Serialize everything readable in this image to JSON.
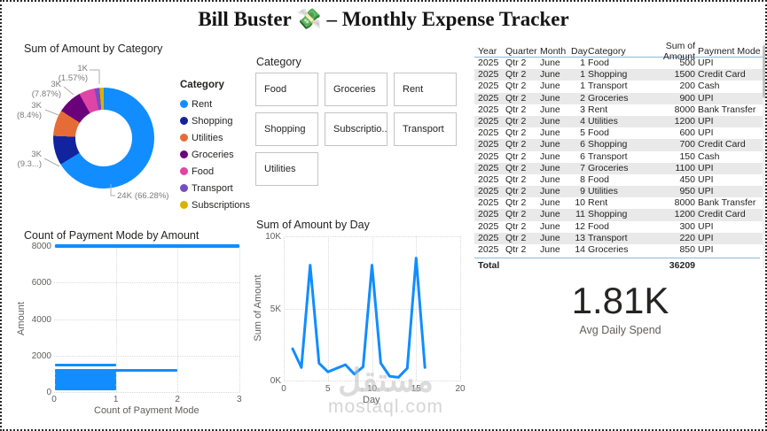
{
  "header": {
    "title": "Bill Buster 💸 – Monthly Expense Tracker"
  },
  "watermark": {
    "logo_text": "مستقل",
    "site": "mostaql.com"
  },
  "slicer": {
    "title": "Category",
    "options": [
      "Food",
      "Groceries",
      "Rent",
      "Shopping",
      "Subscriptio...",
      "Transport",
      "Utilities"
    ]
  },
  "table": {
    "columns": [
      "Year",
      "Quarter",
      "Month",
      "Day",
      "Category",
      "Sum of Amount",
      "Payment Mode"
    ],
    "rows": [
      [
        "2025",
        "Qtr 2",
        "June",
        "1",
        "Food",
        "500",
        "UPI"
      ],
      [
        "2025",
        "Qtr 2",
        "June",
        "1",
        "Shopping",
        "1500",
        "Credit Card"
      ],
      [
        "2025",
        "Qtr 2",
        "June",
        "1",
        "Transport",
        "200",
        "Cash"
      ],
      [
        "2025",
        "Qtr 2",
        "June",
        "2",
        "Groceries",
        "900",
        "UPI"
      ],
      [
        "2025",
        "Qtr 2",
        "June",
        "3",
        "Rent",
        "8000",
        "Bank Transfer"
      ],
      [
        "2025",
        "Qtr 2",
        "June",
        "4",
        "Utilities",
        "1200",
        "UPI"
      ],
      [
        "2025",
        "Qtr 2",
        "June",
        "5",
        "Food",
        "600",
        "UPI"
      ],
      [
        "2025",
        "Qtr 2",
        "June",
        "6",
        "Shopping",
        "700",
        "Credit Card"
      ],
      [
        "2025",
        "Qtr 2",
        "June",
        "6",
        "Transport",
        "150",
        "Cash"
      ],
      [
        "2025",
        "Qtr 2",
        "June",
        "7",
        "Groceries",
        "1100",
        "UPI"
      ],
      [
        "2025",
        "Qtr 2",
        "June",
        "8",
        "Food",
        "450",
        "UPI"
      ],
      [
        "2025",
        "Qtr 2",
        "June",
        "9",
        "Utilities",
        "950",
        "UPI"
      ],
      [
        "2025",
        "Qtr 2",
        "June",
        "10",
        "Rent",
        "8000",
        "Bank Transfer"
      ],
      [
        "2025",
        "Qtr 2",
        "June",
        "11",
        "Shopping",
        "1200",
        "Credit Card"
      ],
      [
        "2025",
        "Qtr 2",
        "June",
        "12",
        "Food",
        "300",
        "UPI"
      ],
      [
        "2025",
        "Qtr 2",
        "June",
        "13",
        "Transport",
        "220",
        "UPI"
      ],
      [
        "2025",
        "Qtr 2",
        "June",
        "14",
        "Groceries",
        "850",
        "UPI"
      ]
    ],
    "total_label": "Total",
    "total_value": "36209"
  },
  "card": {
    "value": "1.81K",
    "label": "Avg Daily Spend"
  },
  "chart_data": [
    {
      "type": "pie",
      "title": "Sum of Amount by Category",
      "legend_title": "Category",
      "legend_position": "right",
      "categories": [
        "Rent",
        "Shopping",
        "Utilities",
        "Groceries",
        "Food",
        "Transport",
        "Subscriptions"
      ],
      "values": [
        24000,
        3400,
        3050,
        2850,
        1850,
        570,
        489
      ],
      "percents": [
        66.28,
        9.39,
        8.42,
        7.87,
        5.11,
        1.57,
        1.36
      ],
      "colors": [
        "#118DFF",
        "#12239E",
        "#E66C37",
        "#6B007B",
        "#E044A7",
        "#744EC2",
        "#D9B300"
      ],
      "callouts": [
        {
          "category": "Transport",
          "value": "1K",
          "percent": "(1.57%)"
        },
        {
          "category": "Groceries",
          "value": "3K",
          "percent": "(7.87%)"
        },
        {
          "category": "Utilities",
          "value": "3K",
          "percent": "(8.4%)"
        },
        {
          "category": "Shopping",
          "value": "3K",
          "percent": "(9.3...)"
        },
        {
          "category": "Rent",
          "value": "24K",
          "percent": "(66.28%)"
        }
      ]
    },
    {
      "type": "bar",
      "orientation": "horizontal",
      "title": "Count of Payment Mode by Amount",
      "xlabel": "Count of Payment Mode",
      "ylabel": "Amount",
      "xlim": [
        0,
        3
      ],
      "ylim": [
        0,
        8000
      ],
      "x_ticks": [
        0,
        1,
        2,
        3
      ],
      "y_ticks": [
        0,
        2000,
        4000,
        6000,
        8000
      ],
      "color": "#118DFF",
      "bars": [
        {
          "amount": 8000,
          "count": 3
        },
        {
          "amount": 1500,
          "count": 1
        },
        {
          "amount": 1200,
          "count": 2
        },
        {
          "amount": 1100,
          "count": 1
        },
        {
          "amount": 950,
          "count": 1
        },
        {
          "amount": 900,
          "count": 1
        },
        {
          "amount": 850,
          "count": 1
        },
        {
          "amount": 700,
          "count": 1
        },
        {
          "amount": 600,
          "count": 1
        },
        {
          "amount": 500,
          "count": 1
        },
        {
          "amount": 489,
          "count": 1
        },
        {
          "amount": 450,
          "count": 1
        },
        {
          "amount": 300,
          "count": 1
        },
        {
          "amount": 220,
          "count": 1
        },
        {
          "amount": 200,
          "count": 1
        },
        {
          "amount": 150,
          "count": 1
        }
      ]
    },
    {
      "type": "line",
      "title": "Sum of Amount by Day",
      "xlabel": "Day",
      "ylabel": "Sum of Amount",
      "xlim": [
        0,
        20
      ],
      "ylim": [
        0,
        10000
      ],
      "x_ticks": [
        0,
        5,
        10,
        15,
        20
      ],
      "y_tick_labels": [
        "0K",
        "5K",
        "10K"
      ],
      "color": "#118DFF",
      "x": [
        1,
        2,
        3,
        4,
        5,
        6,
        7,
        8,
        9,
        10,
        11,
        12,
        13,
        14,
        15,
        16
      ],
      "y": [
        2200,
        900,
        8000,
        1200,
        600,
        850,
        1100,
        450,
        950,
        8000,
        1200,
        300,
        220,
        850,
        8489,
        900
      ]
    }
  ]
}
